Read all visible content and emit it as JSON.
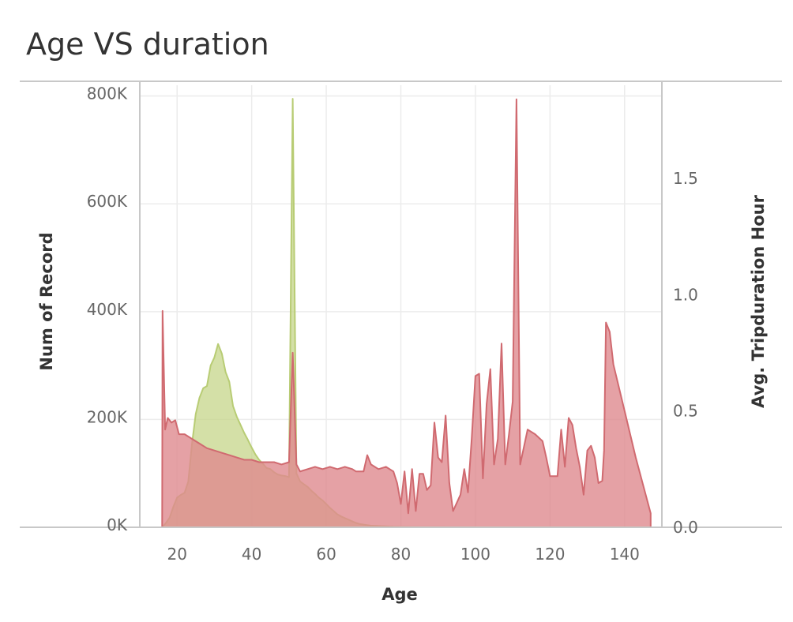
{
  "title": "Age VS duration",
  "chart_data": {
    "type": "area",
    "title": "Age VS duration",
    "xlabel": "Age",
    "ylabel_left": "Num of Record",
    "ylabel_right": "Avg. Tripduration Hour",
    "xlim": [
      10,
      150
    ],
    "ylim_left": [
      0,
      820000
    ],
    "ylim_right": [
      0,
      1.9
    ],
    "x_ticks": [
      20,
      40,
      60,
      80,
      100,
      120,
      140
    ],
    "x_tick_labels": [
      "20",
      "40",
      "60",
      "80",
      "100",
      "120",
      "140"
    ],
    "y_left_ticks": [
      0,
      200000,
      400000,
      600000,
      800000
    ],
    "y_left_tick_labels": [
      "0K",
      "200K",
      "400K",
      "600K",
      "800K"
    ],
    "y_right_ticks": [
      0.0,
      0.5,
      1.0,
      1.5
    ],
    "y_right_tick_labels": [
      "0.0",
      "0.5",
      "1.0",
      "1.5"
    ],
    "grid": true,
    "colors": {
      "num_of_record": "#c5d68a",
      "num_of_record_line": "#b8cc74",
      "avg_tripduration": "#df8a8e",
      "avg_tripduration_line": "#d06a70"
    },
    "series": [
      {
        "axis": "left",
        "points": [
          [
            16,
            0
          ],
          [
            17,
            8000
          ],
          [
            18,
            18000
          ],
          [
            19,
            38000
          ],
          [
            20,
            55000
          ],
          [
            21,
            60000
          ],
          [
            22,
            64000
          ],
          [
            23,
            85000
          ],
          [
            24,
            155000
          ],
          [
            25,
            210000
          ],
          [
            26,
            240000
          ],
          [
            27,
            258000
          ],
          [
            28,
            262000
          ],
          [
            29,
            300000
          ],
          [
            30,
            315000
          ],
          [
            31,
            340000
          ],
          [
            32,
            322000
          ],
          [
            33,
            288000
          ],
          [
            34,
            270000
          ],
          [
            35,
            225000
          ],
          [
            36,
            205000
          ],
          [
            37,
            190000
          ],
          [
            38,
            175000
          ],
          [
            39,
            162000
          ],
          [
            40,
            148000
          ],
          [
            41,
            135000
          ],
          [
            42,
            125000
          ],
          [
            43,
            118000
          ],
          [
            44,
            110000
          ],
          [
            45,
            108000
          ],
          [
            46,
            102000
          ],
          [
            47,
            98000
          ],
          [
            48,
            96000
          ],
          [
            49,
            95000
          ],
          [
            50,
            93000
          ],
          [
            51,
            795000
          ],
          [
            52,
            100000
          ],
          [
            53,
            85000
          ],
          [
            54,
            80000
          ],
          [
            55,
            75000
          ],
          [
            56,
            68000
          ],
          [
            57,
            62000
          ],
          [
            58,
            55000
          ],
          [
            59,
            50000
          ],
          [
            60,
            43000
          ],
          [
            61,
            36000
          ],
          [
            62,
            30000
          ],
          [
            63,
            24000
          ],
          [
            64,
            20000
          ],
          [
            65,
            17000
          ],
          [
            66,
            14000
          ],
          [
            67,
            11000
          ],
          [
            68,
            8000
          ],
          [
            69,
            6000
          ],
          [
            70,
            5000
          ],
          [
            72,
            3000
          ],
          [
            75,
            2000
          ],
          [
            78,
            1000
          ],
          [
            80,
            800
          ],
          [
            85,
            500
          ],
          [
            90,
            300
          ],
          [
            100,
            200
          ],
          [
            110,
            150
          ],
          [
            120,
            150
          ],
          [
            130,
            150
          ],
          [
            140,
            100
          ],
          [
            147,
            100
          ]
        ]
      },
      {
        "axis": "right",
        "points": [
          [
            16,
            0
          ],
          [
            16.1,
            0.93
          ],
          [
            16.8,
            0.42
          ],
          [
            17.5,
            0.47
          ],
          [
            18.5,
            0.45
          ],
          [
            19.5,
            0.46
          ],
          [
            20.5,
            0.4
          ],
          [
            22,
            0.4
          ],
          [
            24,
            0.38
          ],
          [
            26,
            0.36
          ],
          [
            28,
            0.34
          ],
          [
            30,
            0.33
          ],
          [
            32,
            0.32
          ],
          [
            34,
            0.31
          ],
          [
            36,
            0.3
          ],
          [
            38,
            0.29
          ],
          [
            40,
            0.29
          ],
          [
            42,
            0.28
          ],
          [
            44,
            0.28
          ],
          [
            46,
            0.28
          ],
          [
            48,
            0.27
          ],
          [
            50,
            0.28
          ],
          [
            51,
            0.75
          ],
          [
            52,
            0.27
          ],
          [
            53,
            0.24
          ],
          [
            55,
            0.25
          ],
          [
            57,
            0.26
          ],
          [
            59,
            0.25
          ],
          [
            61,
            0.26
          ],
          [
            63,
            0.25
          ],
          [
            65,
            0.26
          ],
          [
            67,
            0.25
          ],
          [
            68,
            0.24
          ],
          [
            70,
            0.24
          ],
          [
            71,
            0.31
          ],
          [
            72,
            0.27
          ],
          [
            74,
            0.25
          ],
          [
            76,
            0.26
          ],
          [
            78,
            0.24
          ],
          [
            79,
            0.19
          ],
          [
            80,
            0.1
          ],
          [
            81,
            0.24
          ],
          [
            82,
            0.06
          ],
          [
            83,
            0.25
          ],
          [
            84,
            0.07
          ],
          [
            85,
            0.23
          ],
          [
            86,
            0.23
          ],
          [
            87,
            0.16
          ],
          [
            88,
            0.18
          ],
          [
            89,
            0.45
          ],
          [
            90,
            0.3
          ],
          [
            91,
            0.28
          ],
          [
            92,
            0.48
          ],
          [
            93,
            0.19
          ],
          [
            94,
            0.07
          ],
          [
            96,
            0.14
          ],
          [
            97,
            0.25
          ],
          [
            98,
            0.15
          ],
          [
            99,
            0.38
          ],
          [
            100,
            0.65
          ],
          [
            101,
            0.66
          ],
          [
            102,
            0.21
          ],
          [
            103,
            0.53
          ],
          [
            104,
            0.68
          ],
          [
            105,
            0.27
          ],
          [
            106,
            0.38
          ],
          [
            107,
            0.79
          ],
          [
            108,
            0.27
          ],
          [
            109,
            0.4
          ],
          [
            110,
            0.54
          ],
          [
            111,
            1.84
          ],
          [
            112,
            0.27
          ],
          [
            114,
            0.42
          ],
          [
            116,
            0.4
          ],
          [
            118,
            0.37
          ],
          [
            119,
            0.3
          ],
          [
            120,
            0.22
          ],
          [
            122,
            0.22
          ],
          [
            123,
            0.42
          ],
          [
            124,
            0.26
          ],
          [
            125,
            0.47
          ],
          [
            126,
            0.44
          ],
          [
            127,
            0.34
          ],
          [
            128,
            0.26
          ],
          [
            129,
            0.14
          ],
          [
            130,
            0.33
          ],
          [
            131,
            0.35
          ],
          [
            132,
            0.3
          ],
          [
            133,
            0.19
          ],
          [
            134,
            0.2
          ],
          [
            134.5,
            0.33
          ],
          [
            135,
            0.88
          ],
          [
            136,
            0.84
          ],
          [
            137,
            0.7
          ],
          [
            140,
            0.5
          ],
          [
            143,
            0.3
          ],
          [
            147,
            0.06
          ],
          [
            147,
            0
          ]
        ]
      }
    ]
  }
}
